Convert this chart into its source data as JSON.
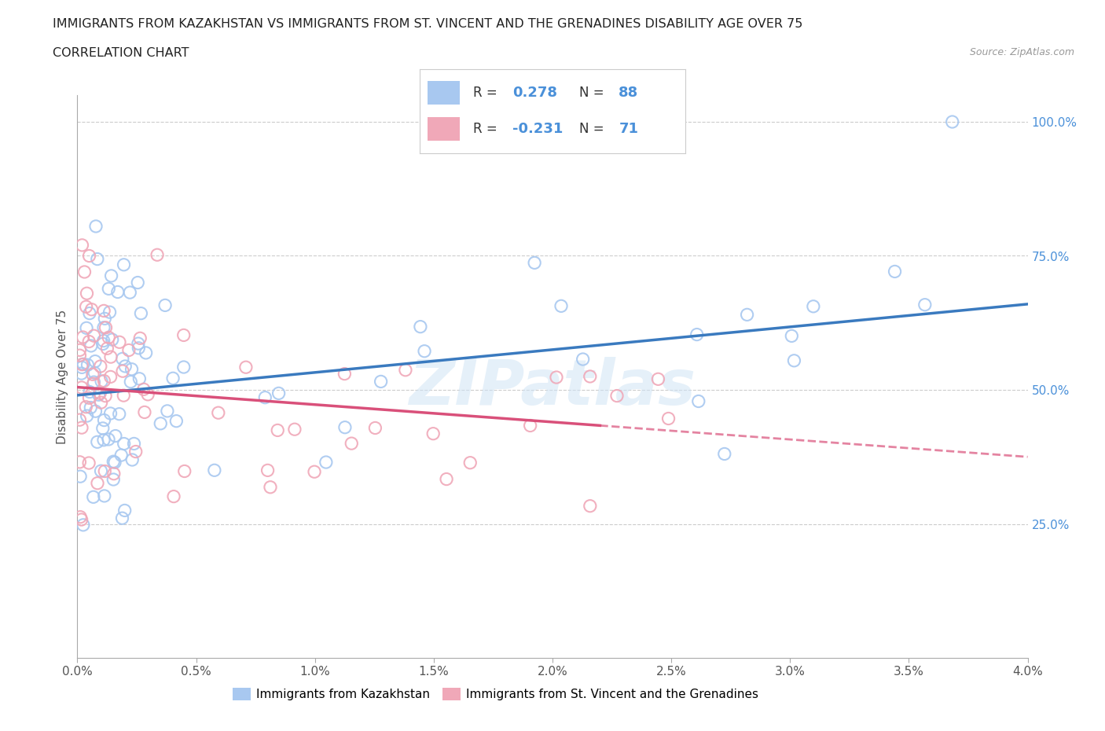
{
  "title_line1": "IMMIGRANTS FROM KAZAKHSTAN VS IMMIGRANTS FROM ST. VINCENT AND THE GRENADINES DISABILITY AGE OVER 75",
  "title_line2": "CORRELATION CHART",
  "source_text": "Source: ZipAtlas.com",
  "ylabel": "Disability Age Over 75",
  "xlim": [
    0.0,
    0.04
  ],
  "ylim": [
    0.0,
    1.05
  ],
  "xtick_labels": [
    "0.0%",
    "0.5%",
    "1.0%",
    "1.5%",
    "2.0%",
    "2.5%",
    "3.0%",
    "3.5%",
    "4.0%"
  ],
  "xtick_vals": [
    0.0,
    0.005,
    0.01,
    0.015,
    0.02,
    0.025,
    0.03,
    0.035,
    0.04
  ],
  "ytick_labels_right": [
    "25.0%",
    "50.0%",
    "75.0%",
    "100.0%"
  ],
  "ytick_vals_right": [
    0.25,
    0.5,
    0.75,
    1.0
  ],
  "color_kaz": "#a8c8f0",
  "color_svg": "#f0a8b8",
  "line_color_kaz": "#3a7abf",
  "line_color_svg": "#d9507a",
  "right_tick_color": "#4a90d9",
  "R_kaz": 0.278,
  "N_kaz": 88,
  "R_svg": -0.231,
  "N_svg": 71,
  "legend_label_kaz": "Immigrants from Kazakhstan",
  "legend_label_svg": "Immigrants from St. Vincent and the Grenadines",
  "watermark": "ZIPatlas",
  "background_color": "#ffffff",
  "legend_R_color": "#4a90d9",
  "legend_N_color": "#4a90d9",
  "legend_text_color": "#333333",
  "kaz_line_y0": 0.49,
  "kaz_line_y1": 0.66,
  "svg_line_y0": 0.505,
  "svg_line_y1": 0.375
}
